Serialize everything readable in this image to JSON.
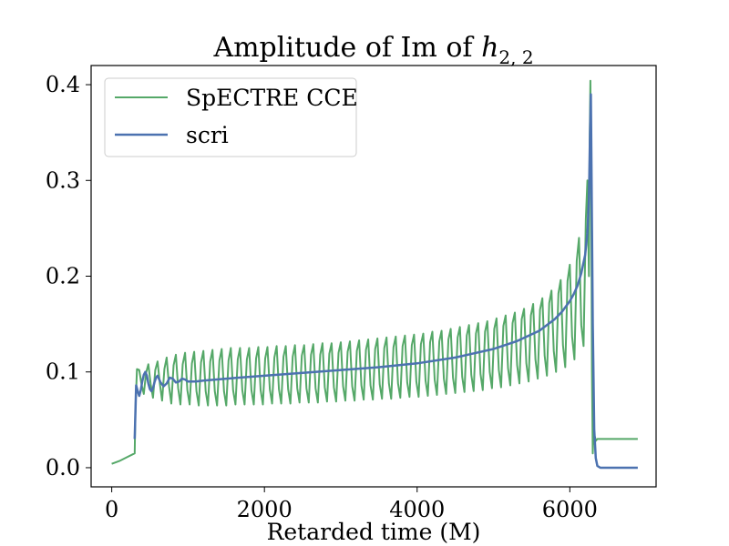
{
  "chart_data": {
    "type": "line",
    "title_main": "Amplitude of Im of ",
    "title_symbol": "h",
    "title_subscript": "2, 2",
    "xlabel": "Retarded time (M)",
    "ylabel": "",
    "xlim": [
      -270,
      7130
    ],
    "ylim": [
      -0.02,
      0.42
    ],
    "xticks": [
      0,
      2000,
      4000,
      6000
    ],
    "xtick_labels": [
      "0",
      "2000",
      "4000",
      "6000"
    ],
    "yticks": [
      0.0,
      0.1,
      0.2,
      0.3,
      0.4
    ],
    "ytick_labels": [
      "0.0",
      "0.1",
      "0.2",
      "0.3",
      "0.4"
    ],
    "grid": false,
    "legend_position": "upper-left",
    "series": [
      {
        "name": "SpECTRE CCE",
        "color": "#55a868",
        "x": [
          0,
          100,
          200,
          300,
          310,
          330,
          360,
          390,
          420,
          450,
          480,
          510,
          540,
          570,
          600,
          630,
          660,
          690,
          720,
          750,
          780,
          810,
          840,
          870,
          900,
          930,
          960,
          990,
          1020,
          1050,
          1080,
          1110,
          1140,
          1170,
          1200,
          1230,
          1260,
          1290,
          1320,
          1350,
          1380,
          1410,
          1440,
          1470,
          1500,
          1530,
          1560,
          1590,
          1620,
          1650,
          1680,
          1710,
          1740,
          1770,
          1800,
          1830,
          1860,
          1890,
          1920,
          1950,
          1980,
          2010,
          2040,
          2070,
          2100,
          2130,
          2160,
          2190,
          2220,
          2250,
          2280,
          2310,
          2340,
          2370,
          2400,
          2430,
          2460,
          2490,
          2520,
          2550,
          2580,
          2610,
          2640,
          2670,
          2700,
          2730,
          2760,
          2790,
          2820,
          2850,
          2880,
          2910,
          2940,
          2970,
          3000,
          3030,
          3060,
          3090,
          3120,
          3150,
          3180,
          3210,
          3240,
          3270,
          3300,
          3330,
          3360,
          3390,
          3420,
          3450,
          3480,
          3510,
          3540,
          3570,
          3600,
          3630,
          3660,
          3690,
          3720,
          3750,
          3780,
          3810,
          3840,
          3870,
          3900,
          3930,
          3960,
          3990,
          4020,
          4050,
          4080,
          4110,
          4140,
          4170,
          4200,
          4230,
          4260,
          4290,
          4320,
          4350,
          4380,
          4410,
          4440,
          4470,
          4500,
          4530,
          4560,
          4590,
          4620,
          4650,
          4680,
          4710,
          4740,
          4770,
          4800,
          4830,
          4860,
          4890,
          4920,
          4950,
          4980,
          5010,
          5040,
          5070,
          5100,
          5130,
          5160,
          5190,
          5220,
          5250,
          5280,
          5310,
          5340,
          5370,
          5400,
          5430,
          5460,
          5490,
          5520,
          5550,
          5580,
          5610,
          5640,
          5670,
          5700,
          5730,
          5760,
          5790,
          5820,
          5850,
          5880,
          5910,
          5940,
          5970,
          6000,
          6030,
          6060,
          6090,
          6120,
          6150,
          6180,
          6210,
          6230,
          6250,
          6260,
          6270,
          6280,
          6290,
          6300,
          6310,
          6320,
          6330,
          6340,
          6360,
          6400,
          6500,
          6700,
          6890
        ],
        "y": [
          0.004,
          0.007,
          0.011,
          0.015,
          0.06,
          0.103,
          0.102,
          0.087,
          0.077,
          0.099,
          0.108,
          0.087,
          0.073,
          0.102,
          0.111,
          0.088,
          0.07,
          0.103,
          0.115,
          0.085,
          0.067,
          0.107,
          0.118,
          0.083,
          0.066,
          0.108,
          0.12,
          0.081,
          0.066,
          0.109,
          0.121,
          0.08,
          0.065,
          0.11,
          0.122,
          0.08,
          0.065,
          0.111,
          0.123,
          0.08,
          0.065,
          0.112,
          0.124,
          0.08,
          0.065,
          0.112,
          0.125,
          0.081,
          0.066,
          0.113,
          0.125,
          0.081,
          0.066,
          0.113,
          0.125,
          0.081,
          0.066,
          0.114,
          0.126,
          0.081,
          0.066,
          0.114,
          0.126,
          0.082,
          0.067,
          0.115,
          0.127,
          0.082,
          0.067,
          0.116,
          0.127,
          0.082,
          0.067,
          0.116,
          0.128,
          0.083,
          0.068,
          0.117,
          0.128,
          0.083,
          0.068,
          0.118,
          0.129,
          0.083,
          0.068,
          0.118,
          0.13,
          0.084,
          0.069,
          0.119,
          0.13,
          0.084,
          0.069,
          0.12,
          0.131,
          0.085,
          0.07,
          0.121,
          0.132,
          0.085,
          0.07,
          0.122,
          0.133,
          0.086,
          0.071,
          0.123,
          0.134,
          0.086,
          0.071,
          0.124,
          0.135,
          0.087,
          0.072,
          0.125,
          0.136,
          0.088,
          0.072,
          0.126,
          0.137,
          0.088,
          0.073,
          0.127,
          0.138,
          0.089,
          0.074,
          0.128,
          0.139,
          0.09,
          0.074,
          0.129,
          0.14,
          0.091,
          0.075,
          0.131,
          0.142,
          0.092,
          0.076,
          0.132,
          0.143,
          0.093,
          0.077,
          0.134,
          0.145,
          0.094,
          0.078,
          0.136,
          0.147,
          0.095,
          0.079,
          0.138,
          0.149,
          0.097,
          0.08,
          0.14,
          0.151,
          0.098,
          0.081,
          0.142,
          0.153,
          0.1,
          0.083,
          0.145,
          0.156,
          0.102,
          0.084,
          0.148,
          0.159,
          0.104,
          0.086,
          0.151,
          0.162,
          0.107,
          0.088,
          0.155,
          0.166,
          0.109,
          0.09,
          0.159,
          0.171,
          0.113,
          0.093,
          0.165,
          0.177,
          0.117,
          0.096,
          0.172,
          0.185,
          0.122,
          0.1,
          0.182,
          0.196,
          0.128,
          0.105,
          0.195,
          0.212,
          0.137,
          0.113,
          0.216,
          0.24,
          0.149,
          0.127,
          0.26,
          0.3,
          0.2,
          0.34,
          0.404,
          0.3,
          0.1,
          0.015,
          0.04,
          0.025,
          0.032,
          0.028,
          0.03,
          0.03,
          0.03,
          0.03,
          0.03
        ]
      },
      {
        "name": "scri",
        "color": "#4c72b0",
        "x": [
          300,
          320,
          340,
          360,
          380,
          400,
          420,
          440,
          460,
          480,
          500,
          520,
          540,
          560,
          580,
          600,
          640,
          680,
          720,
          760,
          800,
          840,
          880,
          920,
          960,
          1000,
          1100,
          1200,
          1500,
          2000,
          2500,
          3000,
          3500,
          4000,
          4500,
          5000,
          5300,
          5600,
          5800,
          5900,
          6000,
          6050,
          6100,
          6150,
          6200,
          6230,
          6250,
          6265,
          6275,
          6285,
          6300,
          6320,
          6340,
          6360,
          6400,
          6500,
          6700,
          6890
        ],
        "y": [
          0.03,
          0.086,
          0.08,
          0.075,
          0.081,
          0.09,
          0.097,
          0.1,
          0.096,
          0.088,
          0.082,
          0.08,
          0.083,
          0.089,
          0.094,
          0.096,
          0.089,
          0.085,
          0.088,
          0.094,
          0.093,
          0.089,
          0.09,
          0.093,
          0.092,
          0.09,
          0.09,
          0.091,
          0.093,
          0.096,
          0.099,
          0.102,
          0.105,
          0.109,
          0.115,
          0.124,
          0.132,
          0.143,
          0.155,
          0.163,
          0.174,
          0.181,
          0.19,
          0.203,
          0.222,
          0.245,
          0.28,
          0.35,
          0.39,
          0.3,
          0.15,
          0.04,
          0.01,
          0.002,
          0.0,
          0.0,
          0.0,
          0.0
        ]
      }
    ]
  }
}
